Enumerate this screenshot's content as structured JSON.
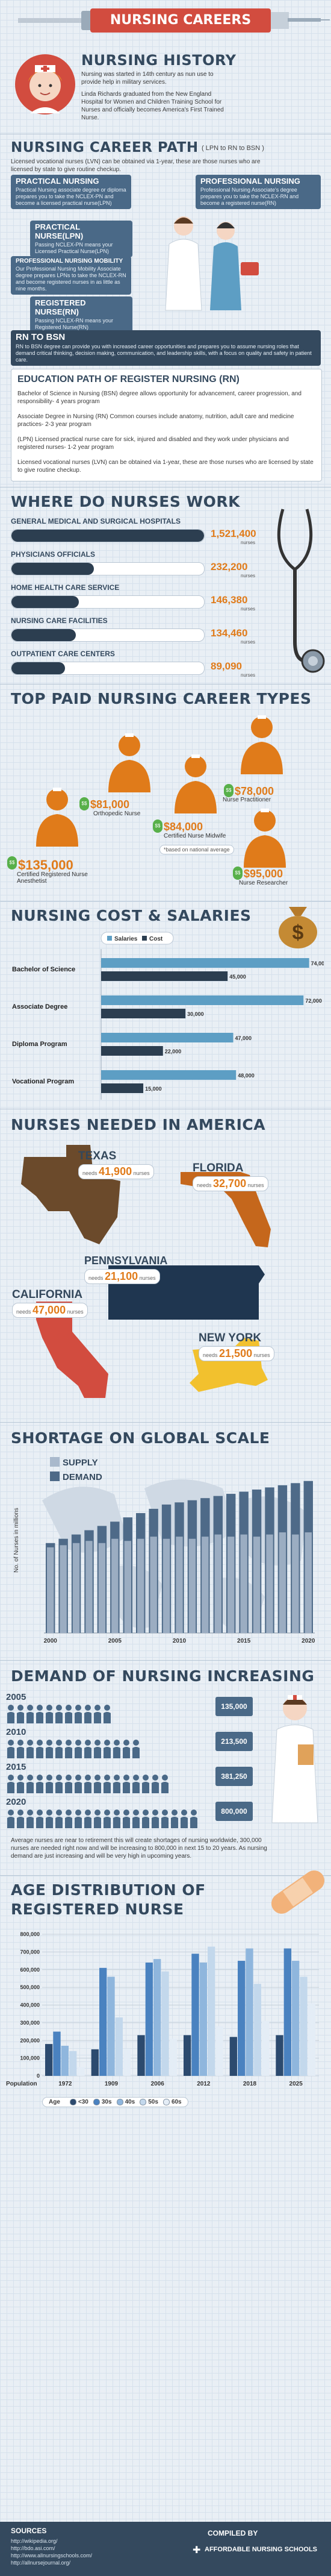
{
  "header": {
    "banner_title": "NURSING CAREERS"
  },
  "history": {
    "title": "NURSING HISTORY",
    "para1": "Nursing was started in 14th century as nun use to provide help in military services.",
    "para2": "Linda Richards graduated from the New England Hospital for Women and Children Training School for Nurses and officially becomes America's First Trained Nurse."
  },
  "career_path": {
    "title": "NURSING CAREER PATH",
    "subtitle": "( LPN to RN to BSN )",
    "intro": "Licensed vocational nurses (LVN) can be obtained via 1-year, these are those nurses who are licensed by state to give routine checkup.",
    "practical": {
      "title": "PRACTICAL NURSING",
      "desc": "Practical Nursing associate degree or diploma prepares you to take the NCLEX-PN and become a licensed practical nurse(LPN)"
    },
    "professional": {
      "title": "PROFESSIONAL NURSING",
      "desc": "Professional Nursing Associate's degree prepares you to take the NCLEX-RN and become a registered nurse(RN)"
    },
    "lpn": {
      "title": "PRACTICAL NURSE(LPN)",
      "desc": "Passing NCLEX-PN means your Licensed Practical Nurse(LPN)"
    },
    "mobility": {
      "title": "PROFESSIONAL NURSING MOBILITY",
      "desc": "Our Professional Nursing Mobility Associate degree prepares LPNs to take the NCLEX-RN and become registered nurses in as little as nine months."
    },
    "registered": {
      "title": "REGISTERED NURSE(RN)",
      "desc": "Passing NCLEX-RN means your Registered Nurse(RN)"
    },
    "rn_bsn": {
      "title": "RN TO BSN",
      "desc": "RN to BSN degree can provide you with increased career opportunities and prepares you to assume nursing roles that demand critical thinking, decision making, communication, and leadership skills, with a focus on quality and safety in patient care."
    }
  },
  "education": {
    "title": "EDUCATION PATH OF REGISTER NURSING (RN)",
    "items": [
      "Bachelor of Science in Nursing (BSN) degree allows opportunity for advancement, career progression, and responsibility- 4 years program",
      "Associate Degree in Nursing (RN) Common courses include anatomy, nutrition, adult care and medicine practices- 2-3 year program",
      "(LPN) Licensed practical nurse care for sick, injured and disabled and they work under physicians and registered nurses- 1-2 year program",
      "Licensed vocational nurses (LVN) can be obtained via 1-year, these are those nurses who are licensed by state to give routine checkup."
    ]
  },
  "work": {
    "title": "WHERE DO NURSES WORK",
    "unit": "nurses",
    "items": [
      {
        "label": "GENERAL MEDICAL AND SURGICAL HOSPITALS",
        "value": "1,521,400",
        "num": 1521400
      },
      {
        "label": "PHYSICIANS OFFICIALS",
        "value": "232,200",
        "num": 232200
      },
      {
        "label": "HOME HEALTH CARE SERVICE",
        "value": "146,380",
        "num": 146380
      },
      {
        "label": "NURSING CARE FACILITIES",
        "value": "134,460",
        "num": 134460
      },
      {
        "label": "OUTPATIENT CARE CENTERS",
        "value": "89,090",
        "num": 89090
      }
    ]
  },
  "top_paid": {
    "title": "TOP PAID NURSING CAREER TYPES",
    "note": "*based on national average",
    "items": [
      {
        "salary": "$78,000",
        "role": "Nurse Practitioner"
      },
      {
        "salary": "$81,000",
        "role": "Orthopedic Nurse"
      },
      {
        "salary": "$84,000",
        "role": "Certified Nurse Midwife"
      },
      {
        "salary": "$135,000",
        "role": "Certified Registered Nurse Anesthetist"
      },
      {
        "salary": "$95,000",
        "role": "Nurse Researcher"
      }
    ]
  },
  "chart_data": [
    {
      "type": "bar",
      "title": "NURSING COST & SALARIES",
      "orientation": "horizontal",
      "categories": [
        "Bachelor of Science",
        "Associate Degree",
        "Diploma Program",
        "Vocational Program"
      ],
      "series": [
        {
          "name": "Salaries",
          "color": "#5d9ec4",
          "values": [
            74000,
            72000,
            47000,
            48000
          ]
        },
        {
          "name": "Cost",
          "color": "#2c3e50",
          "values": [
            45000,
            30000,
            22000,
            15000
          ]
        }
      ],
      "value_labels": {
        "Salaries": [
          "74,000",
          "72,000",
          "47,000",
          "48,000"
        ],
        "Cost": [
          "45,000",
          "30,000",
          "22,000",
          "15,000"
        ]
      },
      "xlim": [
        0,
        76000
      ],
      "legend": "top-center"
    },
    {
      "type": "bar",
      "title": "SHORTAGE ON GLOBAL SCALE",
      "xlabel": "",
      "ylabel": "No. of Nurses in millions",
      "categories": [
        "2000",
        "",
        "",
        "",
        "",
        "2005",
        "",
        "",
        "",
        "",
        "2010",
        "",
        "",
        "",
        "",
        "2015",
        "",
        "",
        "",
        "",
        "2020"
      ],
      "tick_labels": [
        "2000",
        "2005",
        "2010",
        "2015",
        "2020"
      ],
      "series": [
        {
          "name": "SUPPLY",
          "color": "#a9b9cc",
          "values": [
            2.0,
            2.05,
            2.1,
            2.15,
            2.1,
            2.2,
            2.15,
            2.2,
            2.25,
            2.2,
            2.25,
            2.2,
            2.25,
            2.3,
            2.25,
            2.3,
            2.25,
            2.3,
            2.35,
            2.3,
            2.35
          ]
        },
        {
          "name": "DEMAND",
          "color": "#4e6a88",
          "values": [
            2.1,
            2.2,
            2.3,
            2.4,
            2.5,
            2.6,
            2.7,
            2.8,
            2.9,
            3.0,
            3.05,
            3.1,
            3.15,
            3.2,
            3.25,
            3.3,
            3.35,
            3.4,
            3.45,
            3.5,
            3.55
          ]
        }
      ],
      "ylim": [
        0,
        3.8
      ],
      "legend": "top-left"
    },
    {
      "type": "bar",
      "title": "AGE DISTRIBUTION OF REGISTERED NURSE",
      "xlabel": "Population",
      "categories": [
        "1972",
        "1909",
        "2006",
        "2012",
        "2018",
        "2025"
      ],
      "series": [
        {
          "name": "<30",
          "color": "#2c4a6e",
          "values": [
            180000,
            150000,
            230000,
            230000,
            220000,
            230000
          ]
        },
        {
          "name": "30s",
          "color": "#4a82c0",
          "values": [
            250000,
            610000,
            640000,
            690000,
            650000,
            720000
          ]
        },
        {
          "name": "40s",
          "color": "#8fb6dd",
          "values": [
            170000,
            560000,
            660000,
            640000,
            720000,
            650000
          ]
        },
        {
          "name": "50s",
          "color": "#c3d8ec",
          "values": [
            140000,
            330000,
            590000,
            730000,
            520000,
            560000
          ]
        },
        {
          "name": "60s",
          "color": "#e4edf6",
          "values": [
            50000,
            150000,
            210000,
            280000,
            310000,
            410000
          ]
        }
      ],
      "ylim": [
        0,
        800000
      ],
      "y_ticks": [
        "0",
        "100,000",
        "200,000",
        "300,000",
        "400,000",
        "500,000",
        "600,000",
        "700,000",
        "800,000"
      ],
      "legend_label": "Age",
      "legend": "bottom"
    }
  ],
  "shortage": {
    "title": "SHORTAGE ON GLOBAL SCALE",
    "legend_supply": "SUPPLY",
    "legend_demand": "DEMAND",
    "ylabel": "No. of Nurses in millions"
  },
  "cost": {
    "title": "NURSING COST & SALARIES",
    "legend_salaries": "Salaries",
    "legend_cost": "Cost"
  },
  "america": {
    "title": "NURSES NEEDED IN AMERICA",
    "needs": "needs",
    "unit": "nurses",
    "states": [
      {
        "name": "TEXAS",
        "value": "41,900"
      },
      {
        "name": "FLORIDA",
        "value": "32,700"
      },
      {
        "name": "PENNSYLVANIA",
        "value": "21,100"
      },
      {
        "name": "CALIFORNIA",
        "value": "47,000"
      },
      {
        "name": "NEW YORK",
        "value": "21,500"
      }
    ]
  },
  "demand": {
    "title": "DEMAND OF NURSING INCREASING",
    "rows": [
      {
        "year": "2005",
        "value": "135,000"
      },
      {
        "year": "2010",
        "value": "213,500"
      },
      {
        "year": "2015",
        "value": "381,250"
      },
      {
        "year": "2020",
        "value": "800,000"
      }
    ],
    "text": "Average nurses are near to retirement this will create shortages of nursing worldwide, 300,000 nurses are needed right now and will be increasing to 800,000 in next 15 to 20 years. As nursing demand are just increasing and will be very high in upcoming years."
  },
  "age": {
    "title_line1": "AGE DISTRIBUTION OF",
    "title_line2": "REGISTERED NURSE",
    "population_label": "Population",
    "age_label": "Age",
    "legend": [
      "<30",
      "30s",
      "40s",
      "50s",
      "60s"
    ]
  },
  "footer": {
    "sources_title": "SOURCES",
    "sources": [
      "http://wikipedia.org/",
      "http://bdo.asi.com/",
      "http://www.allnursingschools.com/",
      "http://allnursejournal.org/"
    ],
    "compiled_by": "COMPILED BY",
    "brand": "AFFORDABLE NURSING SCHOOLS"
  },
  "colors": {
    "navy": "#34495e",
    "orange": "#e07b1a",
    "red": "#d24c3f",
    "blue": "#4a6987",
    "teal": "#3a7d8f"
  }
}
